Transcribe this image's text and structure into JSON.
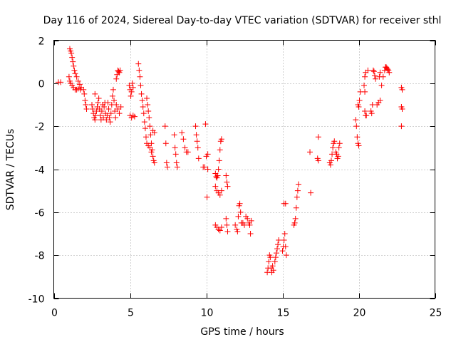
{
  "chart_data": {
    "type": "scatter",
    "title": "Day 116 of 2024, Sidereal Day-to-day VTEC variation (SDTVAR) for receiver sthl",
    "xlabel": "GPS time / hours",
    "ylabel": "SDTVAR / TECUs",
    "xlim": [
      0,
      25
    ],
    "ylim": [
      -10,
      2
    ],
    "xticks": [
      0,
      5,
      10,
      15,
      20,
      25
    ],
    "yticks": [
      -10,
      -8,
      -6,
      -4,
      -2,
      0,
      2
    ],
    "grid": true,
    "marker": "+",
    "color": "#ff0000",
    "series": [
      {
        "name": "SDTVAR",
        "points": [
          [
            0.3,
            0.05
          ],
          [
            0.45,
            0.05
          ],
          [
            1.05,
            1.6
          ],
          [
            1.1,
            1.5
          ],
          [
            1.15,
            1.4
          ],
          [
            1.2,
            1.2
          ],
          [
            1.25,
            1.0
          ],
          [
            1.3,
            0.8
          ],
          [
            1.35,
            0.6
          ],
          [
            1.4,
            0.45
          ],
          [
            1.5,
            0.3
          ],
          [
            1.6,
            0.1
          ],
          [
            1.7,
            -0.05
          ],
          [
            1.8,
            -0.2
          ],
          [
            1.0,
            0.3
          ],
          [
            1.05,
            0.1
          ],
          [
            1.1,
            0.0
          ],
          [
            1.2,
            -0.1
          ],
          [
            1.3,
            -0.2
          ],
          [
            1.4,
            -0.3
          ],
          [
            1.5,
            -0.3
          ],
          [
            1.6,
            -0.25
          ],
          [
            1.75,
            -0.3
          ],
          [
            1.95,
            -0.3
          ],
          [
            2.0,
            -0.5
          ],
          [
            2.05,
            -0.8
          ],
          [
            2.1,
            -1.0
          ],
          [
            2.15,
            -1.2
          ],
          [
            2.5,
            -1.0
          ],
          [
            2.55,
            -1.2
          ],
          [
            2.6,
            -1.4
          ],
          [
            2.65,
            -1.6
          ],
          [
            2.7,
            -1.7
          ],
          [
            2.75,
            -1.5
          ],
          [
            2.8,
            -1.3
          ],
          [
            2.85,
            -1.1
          ],
          [
            2.9,
            -0.9
          ],
          [
            2.95,
            -0.7
          ],
          [
            2.7,
            -0.5
          ],
          [
            3.0,
            -1.2
          ],
          [
            3.05,
            -1.5
          ],
          [
            3.1,
            -1.7
          ],
          [
            3.15,
            -1.3
          ],
          [
            3.2,
            -1.0
          ],
          [
            3.25,
            -1.6
          ],
          [
            3.3,
            -1.1
          ],
          [
            3.35,
            -0.9
          ],
          [
            3.4,
            -1.4
          ],
          [
            3.45,
            -1.7
          ],
          [
            3.5,
            -1.5
          ],
          [
            3.55,
            -0.9
          ],
          [
            3.6,
            -1.2
          ],
          [
            3.65,
            -1.6
          ],
          [
            3.7,
            -1.8
          ],
          [
            3.75,
            -1.4
          ],
          [
            3.8,
            -1.0
          ],
          [
            3.85,
            -0.6
          ],
          [
            3.9,
            -0.3
          ],
          [
            3.95,
            -0.8
          ],
          [
            4.0,
            -1.3
          ],
          [
            4.05,
            -1.6
          ],
          [
            4.1,
            0.2
          ],
          [
            4.15,
            0.4
          ],
          [
            4.2,
            0.6
          ],
          [
            4.25,
            0.55
          ],
          [
            4.3,
            0.5
          ],
          [
            4.35,
            0.6
          ],
          [
            4.1,
            -1.0
          ],
          [
            4.2,
            -1.2
          ],
          [
            4.3,
            -1.4
          ],
          [
            4.4,
            -1.1
          ],
          [
            4.95,
            -0.1
          ],
          [
            5.0,
            -0.3
          ],
          [
            5.05,
            -0.6
          ],
          [
            5.1,
            -0.4
          ],
          [
            5.15,
            0.0
          ],
          [
            5.2,
            -0.2
          ],
          [
            5.0,
            -1.5
          ],
          [
            5.1,
            -1.6
          ],
          [
            5.2,
            -1.5
          ],
          [
            5.3,
            -1.55
          ],
          [
            5.55,
            0.9
          ],
          [
            5.6,
            0.6
          ],
          [
            5.65,
            0.3
          ],
          [
            5.7,
            -0.1
          ],
          [
            5.75,
            -0.5
          ],
          [
            5.8,
            -0.8
          ],
          [
            5.85,
            -1.1
          ],
          [
            5.9,
            -1.4
          ],
          [
            5.95,
            -1.8
          ],
          [
            6.0,
            -2.1
          ],
          [
            6.05,
            -2.5
          ],
          [
            6.1,
            -2.8
          ],
          [
            6.1,
            -0.7
          ],
          [
            6.15,
            -1.0
          ],
          [
            6.2,
            -1.3
          ],
          [
            6.25,
            -1.6
          ],
          [
            6.3,
            -2.0
          ],
          [
            6.35,
            -2.4
          ],
          [
            6.4,
            -2.8
          ],
          [
            6.45,
            -3.1
          ],
          [
            6.5,
            -3.4
          ],
          [
            6.55,
            -3.6
          ],
          [
            6.6,
            -3.7
          ],
          [
            6.2,
            -2.9
          ],
          [
            6.3,
            -3.0
          ],
          [
            6.4,
            -3.2
          ],
          [
            6.5,
            -2.2
          ],
          [
            6.6,
            -2.3
          ],
          [
            7.3,
            -2.0
          ],
          [
            7.35,
            -2.8
          ],
          [
            7.4,
            -3.7
          ],
          [
            7.45,
            -3.9
          ],
          [
            7.9,
            -2.4
          ],
          [
            7.95,
            -3.0
          ],
          [
            8.0,
            -3.3
          ],
          [
            8.05,
            -3.7
          ],
          [
            8.1,
            -3.9
          ],
          [
            8.4,
            -2.3
          ],
          [
            8.5,
            -2.6
          ],
          [
            8.6,
            -3.0
          ],
          [
            8.7,
            -3.2
          ],
          [
            8.8,
            -3.2
          ],
          [
            9.3,
            -2.0
          ],
          [
            9.35,
            -2.4
          ],
          [
            9.4,
            -2.7
          ],
          [
            9.45,
            -3.0
          ],
          [
            9.5,
            -3.5
          ],
          [
            9.8,
            -3.9
          ],
          [
            9.9,
            -3.9
          ],
          [
            9.95,
            -1.9
          ],
          [
            10.0,
            -3.4
          ],
          [
            10.1,
            -3.3
          ],
          [
            10.05,
            -5.3
          ],
          [
            10.1,
            -4.0
          ],
          [
            10.6,
            -4.2
          ],
          [
            10.65,
            -4.35
          ],
          [
            10.7,
            -4.4
          ],
          [
            10.75,
            -4.3
          ],
          [
            10.8,
            -4.0
          ],
          [
            10.85,
            -3.6
          ],
          [
            10.9,
            -3.1
          ],
          [
            10.95,
            -2.7
          ],
          [
            11.0,
            -2.6
          ],
          [
            10.6,
            -4.8
          ],
          [
            10.7,
            -5.0
          ],
          [
            10.8,
            -5.1
          ],
          [
            10.9,
            -5.2
          ],
          [
            11.0,
            -5.0
          ],
          [
            10.6,
            -6.6
          ],
          [
            10.7,
            -6.7
          ],
          [
            10.8,
            -6.8
          ],
          [
            10.9,
            -6.85
          ],
          [
            11.0,
            -6.7
          ],
          [
            11.3,
            -4.3
          ],
          [
            11.35,
            -4.6
          ],
          [
            11.4,
            -4.8
          ],
          [
            11.3,
            -6.3
          ],
          [
            11.35,
            -6.6
          ],
          [
            11.4,
            -6.9
          ],
          [
            11.9,
            -6.6
          ],
          [
            12.0,
            -6.8
          ],
          [
            12.05,
            -6.9
          ],
          [
            12.1,
            -6.2
          ],
          [
            12.15,
            -5.7
          ],
          [
            12.2,
            -5.6
          ],
          [
            12.25,
            -6.0
          ],
          [
            12.3,
            -6.5
          ],
          [
            12.4,
            -6.5
          ],
          [
            12.5,
            -6.6
          ],
          [
            12.6,
            -6.2
          ],
          [
            12.7,
            -6.3
          ],
          [
            12.8,
            -6.5
          ],
          [
            12.85,
            -6.6
          ],
          [
            12.9,
            -7.0
          ],
          [
            12.95,
            -6.4
          ],
          [
            14.0,
            -8.8
          ],
          [
            14.05,
            -8.6
          ],
          [
            14.1,
            -8.3
          ],
          [
            14.15,
            -8.0
          ],
          [
            14.2,
            -8.1
          ],
          [
            14.25,
            -8.6
          ],
          [
            14.3,
            -8.8
          ],
          [
            14.35,
            -8.5
          ],
          [
            14.4,
            -8.7
          ],
          [
            14.5,
            -8.3
          ],
          [
            14.55,
            -8.1
          ],
          [
            14.6,
            -7.9
          ],
          [
            14.65,
            -7.7
          ],
          [
            14.7,
            -7.5
          ],
          [
            14.75,
            -7.3
          ],
          [
            15.0,
            -7.8
          ],
          [
            15.05,
            -7.6
          ],
          [
            15.1,
            -7.3
          ],
          [
            15.15,
            -7.0
          ],
          [
            15.2,
            -7.6
          ],
          [
            15.25,
            -8.0
          ],
          [
            15.1,
            -5.6
          ],
          [
            15.2,
            -5.6
          ],
          [
            15.75,
            -6.6
          ],
          [
            15.8,
            -6.5
          ],
          [
            15.85,
            -6.3
          ],
          [
            15.9,
            -5.8
          ],
          [
            15.95,
            -5.3
          ],
          [
            16.0,
            -5.0
          ],
          [
            16.05,
            -4.7
          ],
          [
            16.85,
            -5.1
          ],
          [
            16.8,
            -3.2
          ],
          [
            17.3,
            -3.5
          ],
          [
            17.35,
            -3.6
          ],
          [
            17.35,
            -2.5
          ],
          [
            18.1,
            -3.7
          ],
          [
            18.15,
            -3.8
          ],
          [
            18.2,
            -3.6
          ],
          [
            18.25,
            -3.3
          ],
          [
            18.3,
            -3.0
          ],
          [
            18.35,
            -2.8
          ],
          [
            18.4,
            -2.7
          ],
          [
            18.5,
            -3.2
          ],
          [
            18.55,
            -3.3
          ],
          [
            18.6,
            -3.5
          ],
          [
            18.65,
            -3.4
          ],
          [
            18.7,
            -3.0
          ],
          [
            18.75,
            -2.8
          ],
          [
            19.8,
            -1.7
          ],
          [
            19.85,
            -2.0
          ],
          [
            19.9,
            -2.5
          ],
          [
            19.95,
            -2.8
          ],
          [
            20.0,
            -2.9
          ],
          [
            19.95,
            -1.0
          ],
          [
            20.0,
            -1.1
          ],
          [
            20.05,
            -0.8
          ],
          [
            20.1,
            -0.4
          ],
          [
            20.4,
            -1.3
          ],
          [
            20.45,
            -1.5
          ],
          [
            20.5,
            -1.5
          ],
          [
            20.35,
            -0.1
          ],
          [
            20.4,
            0.3
          ],
          [
            20.45,
            0.5
          ],
          [
            20.6,
            0.6
          ],
          [
            20.4,
            -0.4
          ],
          [
            20.8,
            -1.3
          ],
          [
            20.85,
            -1.4
          ],
          [
            20.9,
            -1.0
          ],
          [
            20.95,
            0.6
          ],
          [
            21.0,
            0.55
          ],
          [
            21.05,
            0.35
          ],
          [
            21.1,
            0.2
          ],
          [
            21.2,
            -1.0
          ],
          [
            21.3,
            -0.9
          ],
          [
            21.4,
            -0.8
          ],
          [
            21.35,
            0.3
          ],
          [
            21.4,
            0.5
          ],
          [
            21.5,
            -0.1
          ],
          [
            21.6,
            0.3
          ],
          [
            21.7,
            0.6
          ],
          [
            21.75,
            0.75
          ],
          [
            21.8,
            0.75
          ],
          [
            21.85,
            0.7
          ],
          [
            21.9,
            0.65
          ],
          [
            21.95,
            0.6
          ],
          [
            22.0,
            0.5
          ],
          [
            22.8,
            -0.2
          ],
          [
            22.85,
            -0.3
          ],
          [
            22.8,
            -1.1
          ],
          [
            22.85,
            -1.2
          ],
          [
            22.8,
            -2.0
          ]
        ]
      }
    ]
  }
}
